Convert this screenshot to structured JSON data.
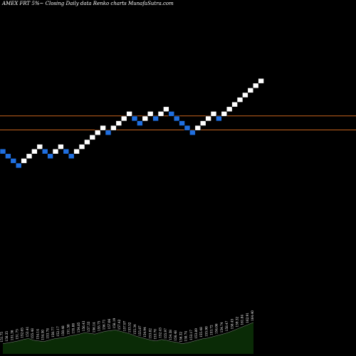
{
  "header": {
    "title": "AMEX  FRT 5%~   Closing Daily data  Renko  charts MunafaSutra.com"
  },
  "colors": {
    "background": "#000000",
    "up_brick": "#ffffff",
    "down_brick": "#1f6fe0",
    "brick_outline": "#000000",
    "reference_line": "#c8641e",
    "volume_fill": "#0a2b06",
    "volume_line": "#ffffff",
    "label_text": "#ffffff"
  },
  "chart_data": {
    "type": "renko",
    "title": "AMEX  FRT 5%~   Closing Daily data  Renko  charts MunafaSutra.com",
    "brick_directions": [
      "down",
      "down",
      "down",
      "down",
      "up",
      "up",
      "up",
      "up",
      "down",
      "down",
      "up",
      "up",
      "down",
      "down",
      "up",
      "up",
      "up",
      "up",
      "up",
      "up",
      "down",
      "up",
      "up",
      "up",
      "up",
      "down",
      "down",
      "up",
      "up",
      "down",
      "up",
      "up",
      "down",
      "down",
      "down",
      "down",
      "down",
      "up",
      "up",
      "up",
      "up",
      "down",
      "up",
      "up",
      "up",
      "up",
      "up",
      "up",
      "up",
      "up"
    ],
    "price_levels": [
      22,
      21,
      20,
      19,
      20,
      21,
      22,
      23,
      22,
      21,
      22,
      23,
      22,
      21,
      22,
      23,
      24,
      25,
      26,
      27,
      26,
      27,
      28,
      29,
      30,
      29,
      28,
      29,
      30,
      29,
      30,
      31,
      30,
      29,
      28,
      27,
      26,
      27,
      28,
      29,
      30,
      29,
      30,
      31,
      32,
      33,
      34,
      35,
      36,
      37
    ],
    "reference_lines": [
      29.5,
      26.5
    ],
    "volume_labels": [
      "151.75",
      "150.35",
      "151.36",
      "151.75",
      "152.65",
      "153.41",
      "155.48",
      "154.14",
      "154.50",
      "153.78",
      "150.77",
      "152.17",
      "150.48",
      "151.50",
      "155.08",
      "154.85",
      "156.43",
      "157.33",
      "156.14",
      "155.75",
      "156.71",
      "157.06",
      "158.19",
      "157.42",
      "157.97",
      "153.52",
      "155.34",
      "155.87",
      "154.94",
      "153.82",
      "153.70",
      "152.43",
      "155.97",
      "154.38",
      "156.48",
      "156.32",
      "150.74",
      "153.17",
      "153.89",
      "155.48",
      "155.90",
      "153.72",
      "154.06",
      "154.74",
      "158.47",
      "158.45",
      "159.32",
      "161.84",
      "162.91",
      "164.40"
    ],
    "volume_profile": [
      0.3,
      0.32,
      0.35,
      0.38,
      0.42,
      0.45,
      0.4,
      0.38,
      0.36,
      0.4,
      0.44,
      0.46,
      0.48,
      0.52,
      0.55,
      0.58,
      0.62,
      0.6,
      0.58,
      0.62,
      0.66,
      0.68,
      0.7,
      0.66,
      0.62,
      0.58,
      0.52,
      0.48,
      0.44,
      0.4,
      0.38,
      0.42,
      0.4,
      0.36,
      0.34,
      0.3,
      0.32,
      0.36,
      0.4,
      0.44,
      0.46,
      0.5,
      0.54,
      0.58,
      0.62,
      0.68,
      0.74,
      0.8,
      0.86,
      0.92
    ]
  }
}
